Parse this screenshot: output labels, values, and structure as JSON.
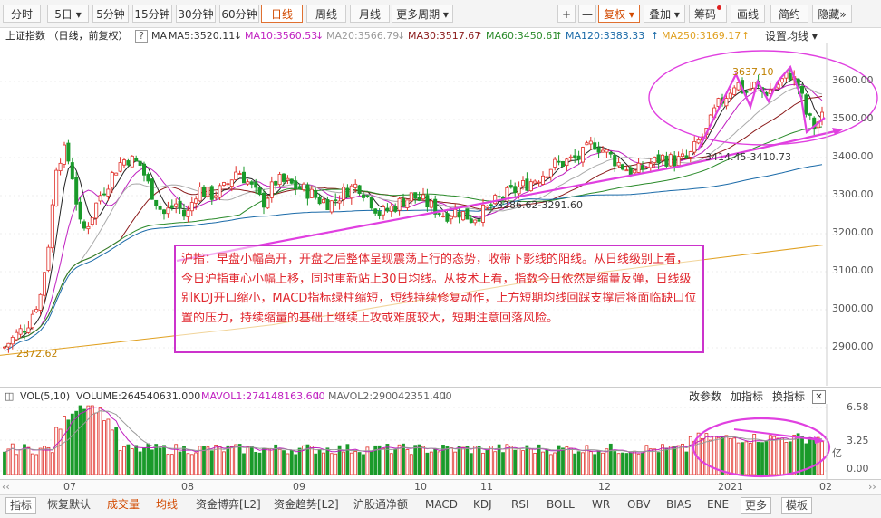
{
  "toolbar": {
    "periods": [
      "分时",
      "5日",
      "5分钟",
      "15分钟",
      "30分钟",
      "60分钟",
      "日线",
      "周线",
      "月线",
      "更多周期"
    ],
    "active_period": "日线",
    "plus": "+",
    "minus": "—",
    "fq": "复权",
    "overlay": "叠加",
    "chip": "筹码",
    "draw": "画线",
    "simple": "简约",
    "hide": "隐藏",
    "more_arrow": "»"
  },
  "ma_legend": {
    "title": "上证指数 （日线，前复权）",
    "help": "?",
    "ma_label": "MA",
    "ma5": "MA5:3520.11",
    "ma10": "MA10:3560.53",
    "ma20": "MA20:3566.79",
    "ma30": "MA30:3517.67",
    "ma60": "MA60:3450.61",
    "ma120": "MA120:3383.33",
    "ma250": "MA250:3169.17",
    "setting": "设置均线"
  },
  "price_axis": [
    "3600.00",
    "3500.00",
    "3400.00",
    "3300.00",
    "3200.00",
    "3100.00",
    "3000.00",
    "2900.00"
  ],
  "annotations": {
    "high": "3637.10",
    "low": "2872.62",
    "range1": "3414.45-3410.73",
    "range2": "3286.62-3291.60"
  },
  "note": "沪指：早盘小幅高开，开盘之后整体呈现震荡上行的态势，收带下影线的阳线。从日线级别上看，今日沪指重心小幅上移，同时重新站上30日均线。从技术上看，指数今日依然是缩量反弹，日线级别KDJ开口缩小，MACD指标绿柱缩短，短线持续修复动作，上方短期均线回踩支撑后将面临缺口位置的压力，持续缩量的基础上继续上攻或难度较大，短期注意回落风险。",
  "vol_legend": {
    "name": "VOL(5,10)",
    "volume": "VOLUME:264540631.000",
    "mavol1": "MAVOL1:274148163.600",
    "mavol2": "MAVOL2:290042351.400",
    "change_param": "改参数",
    "add_indicator": "加指标",
    "switch_indicator": "换指标",
    "close": "✕"
  },
  "vol_axis": [
    "6.58",
    "3.25",
    "0.00"
  ],
  "vol_unit": "亿",
  "time_axis": [
    "07",
    "08",
    "09",
    "10",
    "11",
    "12",
    "2021",
    "02"
  ],
  "bottom_tabs": [
    "指标",
    "恢复默认",
    "成交量",
    "均线",
    "资金博弈[L2]",
    "资金趋势[L2]",
    "沪股通净额",
    "MACD",
    "KDJ",
    "RSI",
    "BOLL",
    "WR",
    "OBV",
    "BIAS",
    "ENE",
    "更多",
    "模板"
  ],
  "colors": {
    "up": "#e0302a",
    "down": "#1a9a2a",
    "accent": "#d24a00",
    "annotation": "#e040e0",
    "ma10": "#c020c0",
    "ma30": "#8a1a1a",
    "ma60": "#2a8a2a",
    "ma120": "#1a6aa8",
    "ma250": "#e0a020"
  }
}
